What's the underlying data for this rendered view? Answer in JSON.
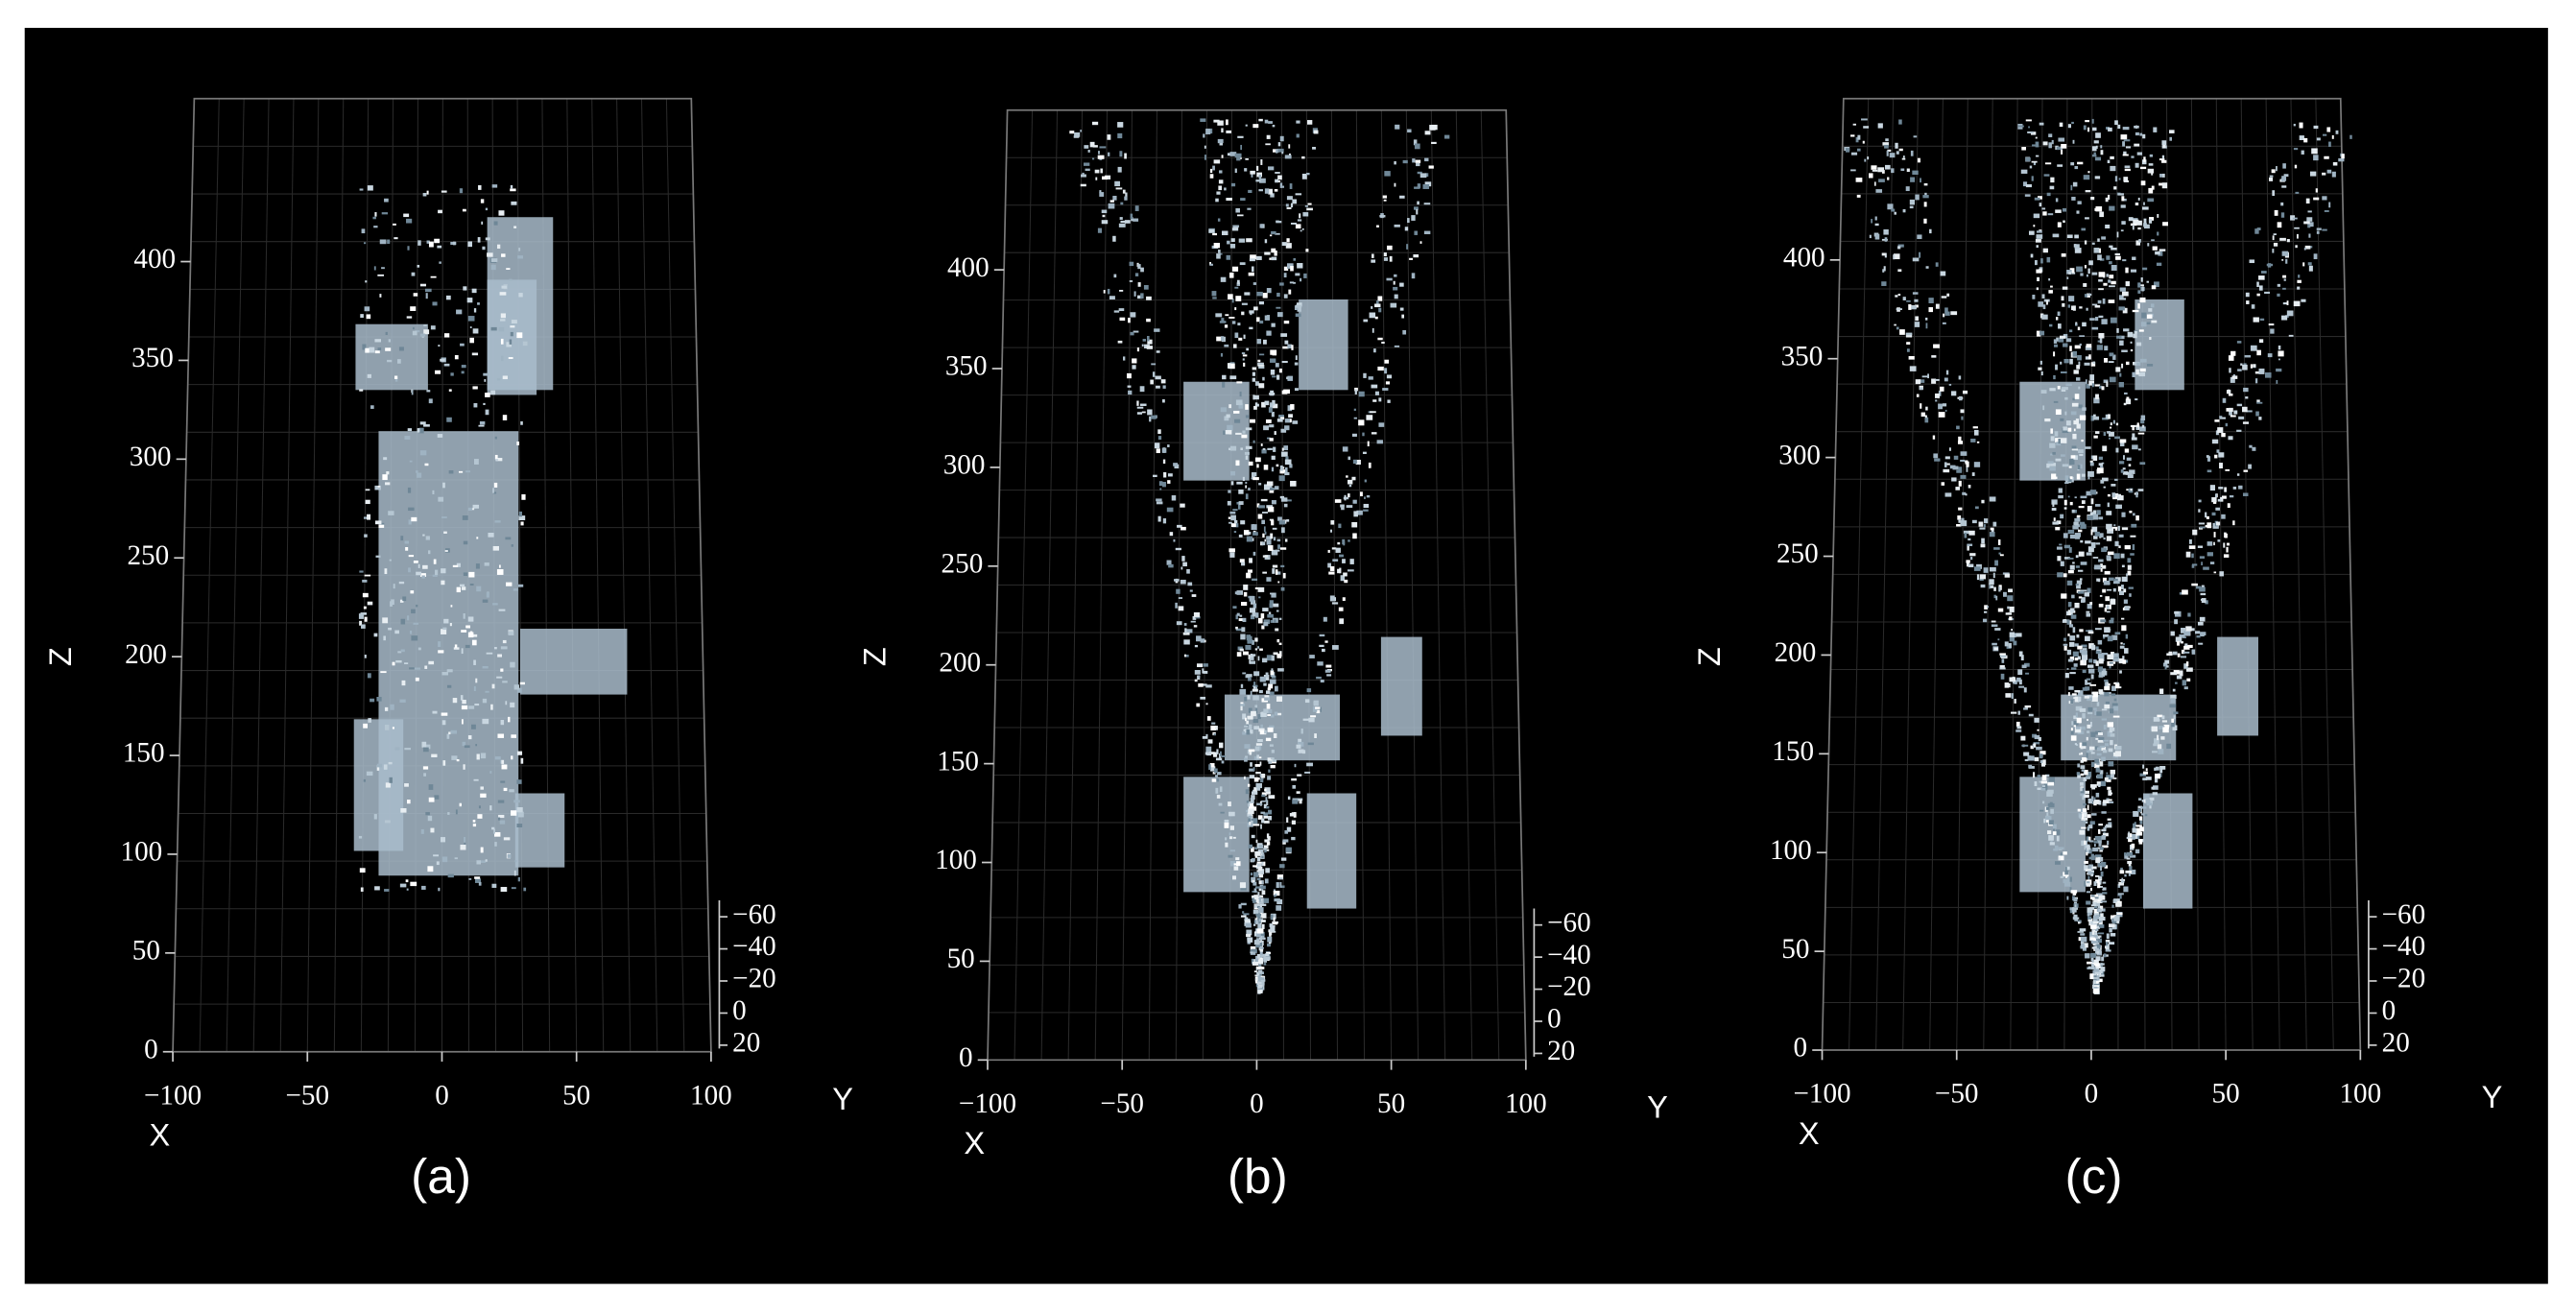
{
  "panels": [
    {
      "caption": "(a)",
      "x_label": "X",
      "y_label": "Y",
      "z_label": "Z",
      "x_ticks": [
        "−100",
        "−50",
        "0",
        "50",
        "100"
      ],
      "z_ticks": [
        "0",
        "50",
        "100",
        "150",
        "200",
        "250",
        "300",
        "350",
        "400"
      ],
      "y_ticks": [
        "20",
        "0",
        "−20",
        "−40",
        "−60"
      ]
    },
    {
      "caption": "(b)",
      "x_label": "X",
      "y_label": "Y",
      "z_label": "Z",
      "x_ticks": [
        "−100",
        "−50",
        "0",
        "50",
        "100"
      ],
      "z_ticks": [
        "0",
        "50",
        "100",
        "150",
        "200",
        "250",
        "300",
        "350",
        "400"
      ],
      "y_ticks": [
        "20",
        "0",
        "−20",
        "−40",
        "−60"
      ]
    },
    {
      "caption": "(c)",
      "x_label": "X",
      "y_label": "Y",
      "z_label": "Z",
      "x_ticks": [
        "−100",
        "−50",
        "0",
        "50",
        "100"
      ],
      "z_ticks": [
        "0",
        "50",
        "100",
        "150",
        "200",
        "250",
        "300",
        "350",
        "400"
      ],
      "y_ticks": [
        "20",
        "0",
        "−20",
        "−40",
        "−60"
      ]
    }
  ]
}
